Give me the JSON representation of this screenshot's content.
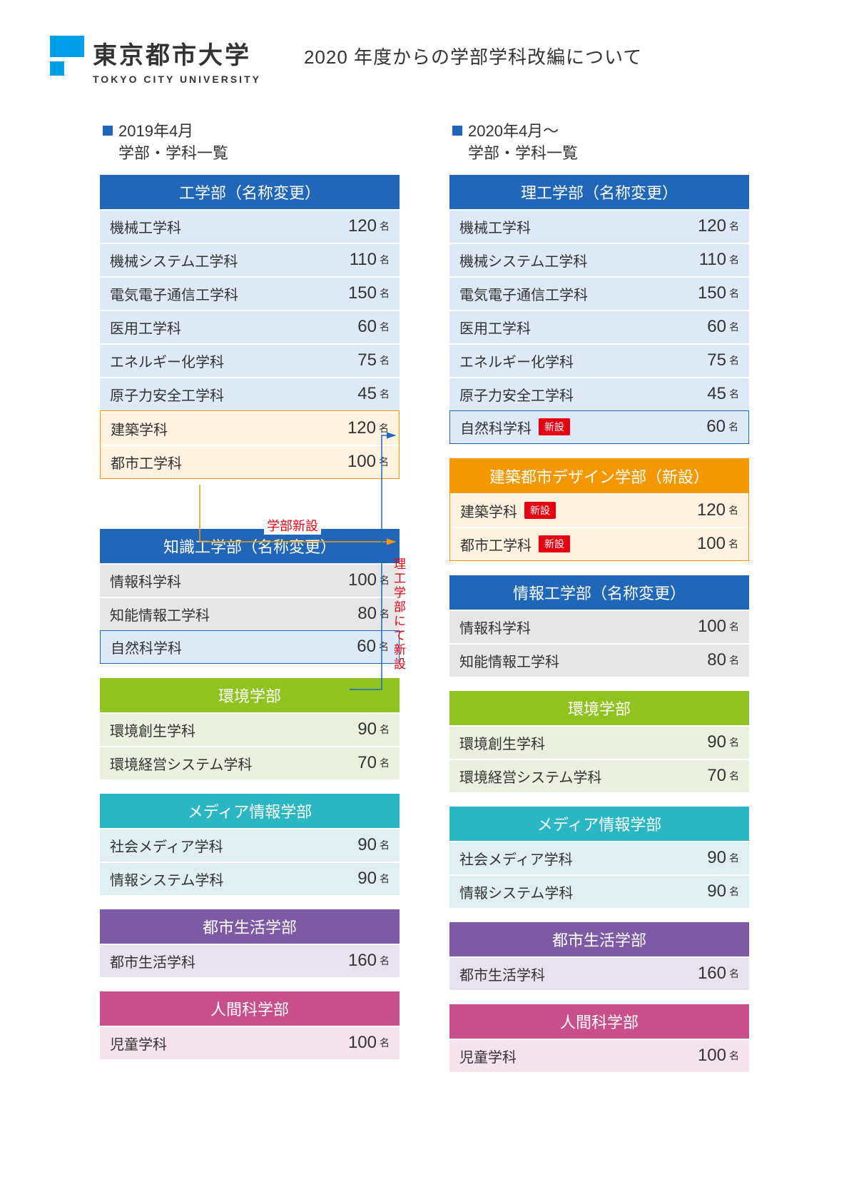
{
  "logo": {
    "name_jp": "東京都市大学",
    "name_en": "TOKYO CITY UNIVERSITY"
  },
  "page_title": "2020 年度からの学部学科改編について",
  "suffix": "名",
  "badge_new": "新設",
  "annot_gakubu_shinsetu": "学部新設",
  "annot_rikogaku_shinsetu": "理工学部にて新設",
  "left": {
    "header_line1": "2019年4月",
    "header_line2": "学部・学科一覧",
    "faculties": [
      {
        "title": "工学部（名称変更）",
        "header_color": "#2066b9",
        "row_color": "#dde9f5",
        "departments": [
          {
            "name": "機械工学科",
            "num": 120
          },
          {
            "name": "機械システム工学科",
            "num": 110
          },
          {
            "name": "電気電子通信工学科",
            "num": 150
          },
          {
            "name": "医用工学科",
            "num": 60
          },
          {
            "name": "エネルギー化学科",
            "num": 75
          },
          {
            "name": "原子力安全工学科",
            "num": 45
          },
          {
            "name": "建築学科",
            "num": 120,
            "row_color_override": "#fdf2df",
            "outline_group": "orange-top"
          },
          {
            "name": "都市工学科",
            "num": 100,
            "row_color_override": "#fdf2df",
            "outline_group": "orange-bottom"
          }
        ]
      },
      {
        "title": "知識工学部（名称変更）",
        "header_color": "#2066b9",
        "row_color": "#e6e6e6",
        "pre_gap": 70,
        "departments": [
          {
            "name": "情報科学科",
            "num": 100
          },
          {
            "name": "知能情報工学科",
            "num": 80
          },
          {
            "name": "自然科学科",
            "num": 60,
            "row_color_override": "#dde9f5",
            "outline": "blue"
          }
        ]
      },
      {
        "title": "環境学部",
        "header_color": "#8fc31f",
        "row_color": "#e9f0dd",
        "departments": [
          {
            "name": "環境創生学科",
            "num": 90
          },
          {
            "name": "環境経営システム学科",
            "num": 70
          }
        ]
      },
      {
        "title": "メディア情報学部",
        "header_color": "#2ab7c3",
        "row_color": "#dfeff1",
        "departments": [
          {
            "name": "社会メディア学科",
            "num": 90
          },
          {
            "name": "情報システム学科",
            "num": 90
          }
        ]
      },
      {
        "title": "都市生活学部",
        "header_color": "#7d5aa5",
        "row_color": "#e8e2ef",
        "departments": [
          {
            "name": "都市生活学科",
            "num": 160
          }
        ]
      },
      {
        "title": "人間科学部",
        "header_color": "#c94f8a",
        "row_color": "#f4e3ec",
        "departments": [
          {
            "name": "児童学科",
            "num": 100
          }
        ]
      }
    ]
  },
  "right": {
    "header_line1": "2020年4月～",
    "header_line2": "学部・学科一覧",
    "faculties": [
      {
        "title": "理工学部（名称変更）",
        "header_color": "#2066b9",
        "row_color": "#dde9f5",
        "departments": [
          {
            "name": "機械工学科",
            "num": 120
          },
          {
            "name": "機械システム工学科",
            "num": 110
          },
          {
            "name": "電気電子通信工学科",
            "num": 150
          },
          {
            "name": "医用工学科",
            "num": 60
          },
          {
            "name": "エネルギー化学科",
            "num": 75
          },
          {
            "name": "原子力安全工学科",
            "num": 45
          },
          {
            "name": "自然科学科",
            "num": 60,
            "badge": true,
            "outline": "blue"
          }
        ]
      },
      {
        "title": "建築都市デザイン学部（新設）",
        "header_color": "#f39800",
        "row_color": "#fdf2df",
        "outline_block": "orange",
        "departments": [
          {
            "name": "建築学科",
            "num": 120,
            "badge": true
          },
          {
            "name": "都市工学科",
            "num": 100,
            "badge": true
          }
        ]
      },
      {
        "title": "情報工学部（名称変更）",
        "header_color": "#2066b9",
        "row_color": "#e6e6e6",
        "departments": [
          {
            "name": "情報科学科",
            "num": 100
          },
          {
            "name": "知能情報工学科",
            "num": 80
          }
        ]
      },
      {
        "title": "環境学部",
        "header_color": "#8fc31f",
        "row_color": "#e9f0dd",
        "departments": [
          {
            "name": "環境創生学科",
            "num": 90
          },
          {
            "name": "環境経営システム学科",
            "num": 70
          }
        ]
      },
      {
        "title": "メディア情報学部",
        "header_color": "#2ab7c3",
        "row_color": "#dfeff1",
        "departments": [
          {
            "name": "社会メディア学科",
            "num": 90
          },
          {
            "name": "情報システム学科",
            "num": 90
          }
        ]
      },
      {
        "title": "都市生活学部",
        "header_color": "#7d5aa5",
        "row_color": "#e8e2ef",
        "departments": [
          {
            "name": "都市生活学科",
            "num": 160
          }
        ]
      },
      {
        "title": "人間科学部",
        "header_color": "#c94f8a",
        "row_color": "#f4e3ec",
        "departments": [
          {
            "name": "児童学科",
            "num": 100
          }
        ]
      }
    ]
  },
  "arrows": {
    "orange": {
      "color": "#f39800",
      "width": 1.5
    },
    "blue": {
      "color": "#2066b9",
      "width": 1.5
    }
  }
}
